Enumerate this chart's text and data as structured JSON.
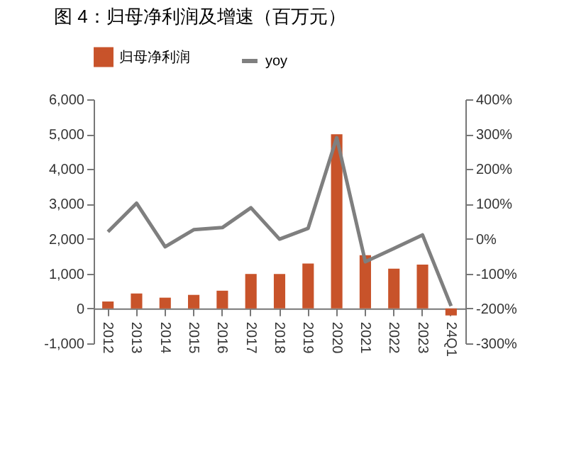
{
  "chart_data": {
    "type": "bar",
    "title": "图 4：归母净利润及增速（百万元）",
    "categories": [
      "2012",
      "2013",
      "2014",
      "2015",
      "2016",
      "2017",
      "2018",
      "2019",
      "2020",
      "2021",
      "2022",
      "2023",
      "24Q1"
    ],
    "series": [
      {
        "name": "归母净利润",
        "color": "#c8532a",
        "values": [
          200,
          430,
          310,
          390,
          510,
          990,
          990,
          1290,
          5000,
          1530,
          1140,
          1260,
          -200
        ]
      },
      {
        "name": "yoy",
        "type": "line",
        "axis": "y2",
        "color": "#7f7f7f",
        "values": [
          20,
          102,
          -23,
          26,
          32,
          89,
          -1,
          30,
          290,
          -66,
          -28,
          11,
          -193
        ]
      }
    ],
    "ylim": [
      -1000,
      6000
    ],
    "yticks": [
      {
        "value": -1000,
        "label": "-1,000"
      },
      0,
      {
        "value": 1000,
        "label": "1,000"
      },
      {
        "value": 2000,
        "label": "2,000"
      },
      {
        "value": 3000,
        "label": "3,000"
      },
      {
        "value": 4000,
        "label": "4,000"
      },
      {
        "value": 5000,
        "label": "5,000"
      },
      {
        "value": 6000,
        "label": "6,000"
      }
    ],
    "y2lim": [
      -300,
      400
    ],
    "y2ticks": [
      {
        "value": -300,
        "label": "-300%"
      },
      {
        "value": -200,
        "label": "-200%"
      },
      {
        "value": -100,
        "label": "-100%"
      },
      {
        "value": 0,
        "label": "0%"
      },
      {
        "value": 100,
        "label": "100%"
      },
      {
        "value": 200,
        "label": "200%"
      },
      {
        "value": 300,
        "label": "300%"
      },
      {
        "value": 400,
        "label": "400%"
      }
    ],
    "legend": "top",
    "grid": false,
    "marker": "none",
    "line_style": "solid"
  }
}
